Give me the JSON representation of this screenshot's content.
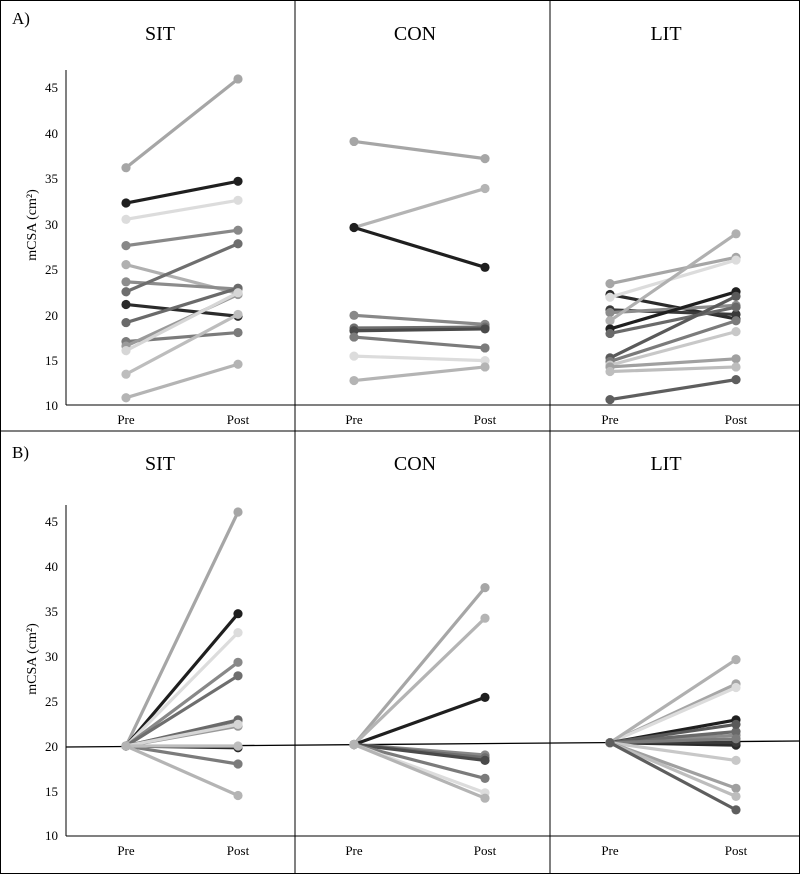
{
  "figure": {
    "panels": [
      {
        "label": "A)",
        "titles": [
          "SIT",
          "CON",
          "LIT"
        ]
      },
      {
        "label": "B)",
        "titles": [
          "SIT",
          "CON",
          "LIT"
        ]
      }
    ],
    "ylabel": "mCSA (cm²)",
    "xticks": [
      "Pre",
      "Post"
    ],
    "yticks": [
      "10",
      "15",
      "20",
      "25",
      "30",
      "35",
      "40",
      "45"
    ]
  },
  "chart_data": [
    {
      "type": "line",
      "panel": "A",
      "title": "SIT",
      "ylabel": "mCSA (cm²)",
      "categories": [
        "Pre",
        "Post"
      ],
      "ylim": [
        10,
        46
      ],
      "series": [
        {
          "name": "s1",
          "values": [
            36.2,
            46.0
          ],
          "color": "#a6a6a6"
        },
        {
          "name": "s2",
          "values": [
            32.3,
            34.7
          ],
          "color": "#1f1f1f"
        },
        {
          "name": "s3",
          "values": [
            30.5,
            32.6
          ],
          "color": "#dcdcdc"
        },
        {
          "name": "s4",
          "values": [
            27.6,
            29.3
          ],
          "color": "#888888"
        },
        {
          "name": "s5",
          "values": [
            25.5,
            22.3
          ],
          "color": "#b0b0b0"
        },
        {
          "name": "s6",
          "values": [
            23.6,
            22.8
          ],
          "color": "#8c8c8c"
        },
        {
          "name": "s7",
          "values": [
            22.5,
            27.8
          ],
          "color": "#6e6e6e"
        },
        {
          "name": "s8",
          "values": [
            21.1,
            19.8
          ],
          "color": "#2b2b2b"
        },
        {
          "name": "s9",
          "values": [
            19.1,
            22.9
          ],
          "color": "#6a6a6a"
        },
        {
          "name": "s10",
          "values": [
            17.0,
            18.0
          ],
          "color": "#7b7b7b"
        },
        {
          "name": "s11",
          "values": [
            16.5,
            22.2
          ],
          "color": "#9a9a9a"
        },
        {
          "name": "s12",
          "values": [
            16.0,
            22.4
          ],
          "color": "#d6d6d6"
        },
        {
          "name": "s13",
          "values": [
            13.4,
            20.0
          ],
          "color": "#bdbdbd"
        },
        {
          "name": "s14",
          "values": [
            10.8,
            14.5
          ],
          "color": "#b4b4b4"
        }
      ]
    },
    {
      "type": "line",
      "panel": "A",
      "title": "CON",
      "categories": [
        "Pre",
        "Post"
      ],
      "ylim": [
        10,
        46
      ],
      "series": [
        {
          "name": "c1",
          "values": [
            39.1,
            37.2
          ],
          "color": "#a6a6a6"
        },
        {
          "name": "c2",
          "values": [
            29.6,
            33.9
          ],
          "color": "#b4b4b4"
        },
        {
          "name": "c3",
          "values": [
            29.6,
            25.2
          ],
          "color": "#1f1f1f"
        },
        {
          "name": "c4",
          "values": [
            19.9,
            18.9
          ],
          "color": "#888888"
        },
        {
          "name": "c5",
          "values": [
            18.5,
            18.6
          ],
          "color": "#6e6e6e"
        },
        {
          "name": "c6",
          "values": [
            18.2,
            18.4
          ],
          "color": "#4a4a4a"
        },
        {
          "name": "c7",
          "values": [
            17.5,
            16.3
          ],
          "color": "#7b7b7b"
        },
        {
          "name": "c8",
          "values": [
            15.4,
            14.9
          ],
          "color": "#dcdcdc"
        },
        {
          "name": "c9",
          "values": [
            12.7,
            14.2
          ],
          "color": "#b4b4b4"
        }
      ]
    },
    {
      "type": "line",
      "panel": "A",
      "title": "LIT",
      "categories": [
        "Pre",
        "Post"
      ],
      "ylim": [
        10,
        46
      ],
      "series": [
        {
          "name": "l1",
          "values": [
            23.4,
            26.3
          ],
          "color": "#a6a6a6"
        },
        {
          "name": "l2",
          "values": [
            22.2,
            19.5
          ],
          "color": "#2b2b2b"
        },
        {
          "name": "l3",
          "values": [
            21.9,
            26.0
          ],
          "color": "#dcdcdc"
        },
        {
          "name": "l4",
          "values": [
            20.5,
            20.0
          ],
          "color": "#3a3a3a"
        },
        {
          "name": "l5",
          "values": [
            20.2,
            21.0
          ],
          "color": "#8c8c8c"
        },
        {
          "name": "l6",
          "values": [
            19.3,
            28.9
          ],
          "color": "#b0b0b0"
        },
        {
          "name": "l7",
          "values": [
            18.4,
            22.5
          ],
          "color": "#1f1f1f"
        },
        {
          "name": "l8",
          "values": [
            17.9,
            20.8
          ],
          "color": "#6a6a6a"
        },
        {
          "name": "l9",
          "values": [
            15.2,
            22.0
          ],
          "color": "#5a5a5a"
        },
        {
          "name": "l10",
          "values": [
            14.8,
            19.3
          ],
          "color": "#7b7b7b"
        },
        {
          "name": "l11",
          "values": [
            14.4,
            18.1
          ],
          "color": "#c8c8c8"
        },
        {
          "name": "l12",
          "values": [
            14.2,
            15.1
          ],
          "color": "#a0a0a0"
        },
        {
          "name": "l13",
          "values": [
            13.7,
            14.2
          ],
          "color": "#bdbdbd"
        },
        {
          "name": "l14",
          "values": [
            10.6,
            12.8
          ],
          "color": "#5e5e5e"
        }
      ]
    },
    {
      "type": "line",
      "panel": "B",
      "title": "SIT",
      "ylabel": "mCSA (cm²)",
      "categories": [
        "Pre",
        "Post"
      ],
      "ylim": [
        10,
        46
      ],
      "reference_line": 20,
      "series": [
        {
          "name": "s1",
          "values": [
            20,
            46.0
          ],
          "color": "#a6a6a6"
        },
        {
          "name": "s2",
          "values": [
            20,
            34.7
          ],
          "color": "#1f1f1f"
        },
        {
          "name": "s3",
          "values": [
            20,
            32.6
          ],
          "color": "#dcdcdc"
        },
        {
          "name": "s4",
          "values": [
            20,
            29.3
          ],
          "color": "#888888"
        },
        {
          "name": "s5",
          "values": [
            20,
            22.3
          ],
          "color": "#b0b0b0"
        },
        {
          "name": "s6",
          "values": [
            20,
            22.8
          ],
          "color": "#8c8c8c"
        },
        {
          "name": "s7",
          "values": [
            20,
            27.8
          ],
          "color": "#6e6e6e"
        },
        {
          "name": "s8",
          "values": [
            20,
            19.8
          ],
          "color": "#2b2b2b"
        },
        {
          "name": "s9",
          "values": [
            20,
            22.9
          ],
          "color": "#6a6a6a"
        },
        {
          "name": "s10",
          "values": [
            20,
            18.0
          ],
          "color": "#7b7b7b"
        },
        {
          "name": "s11",
          "values": [
            20,
            22.2
          ],
          "color": "#9a9a9a"
        },
        {
          "name": "s12",
          "values": [
            20,
            22.4
          ],
          "color": "#d6d6d6"
        },
        {
          "name": "s13",
          "values": [
            20,
            20.0
          ],
          "color": "#bdbdbd"
        },
        {
          "name": "s14",
          "values": [
            20,
            14.5
          ],
          "color": "#b4b4b4"
        }
      ]
    },
    {
      "type": "line",
      "panel": "B",
      "title": "CON",
      "categories": [
        "Pre",
        "Post"
      ],
      "ylim": [
        10,
        46
      ],
      "reference_line": 20,
      "series": [
        {
          "name": "c1",
          "values": [
            20,
            37.6
          ],
          "color": "#a6a6a6"
        },
        {
          "name": "c2",
          "values": [
            20,
            34.2
          ],
          "color": "#b4b4b4"
        },
        {
          "name": "c3",
          "values": [
            20,
            25.4
          ],
          "color": "#1f1f1f"
        },
        {
          "name": "c4",
          "values": [
            20,
            19.0
          ],
          "color": "#888888"
        },
        {
          "name": "c5",
          "values": [
            20,
            18.7
          ],
          "color": "#6e6e6e"
        },
        {
          "name": "c6",
          "values": [
            20,
            18.4
          ],
          "color": "#4a4a4a"
        },
        {
          "name": "c7",
          "values": [
            20,
            16.4
          ],
          "color": "#7b7b7b"
        },
        {
          "name": "c8",
          "values": [
            20,
            14.8
          ],
          "color": "#dcdcdc"
        },
        {
          "name": "c9",
          "values": [
            20,
            14.2
          ],
          "color": "#b4b4b4"
        }
      ]
    },
    {
      "type": "line",
      "panel": "B",
      "title": "LIT",
      "categories": [
        "Pre",
        "Post"
      ],
      "ylim": [
        10,
        46
      ],
      "reference_line": 20,
      "series": [
        {
          "name": "l1",
          "values": [
            20,
            26.9
          ],
          "color": "#a6a6a6"
        },
        {
          "name": "l2",
          "values": [
            20,
            20.1
          ],
          "color": "#2b2b2b"
        },
        {
          "name": "l3",
          "values": [
            20,
            26.5
          ],
          "color": "#dcdcdc"
        },
        {
          "name": "l4",
          "values": [
            20,
            20.4
          ],
          "color": "#3a3a3a"
        },
        {
          "name": "l5",
          "values": [
            20,
            21.2
          ],
          "color": "#8c8c8c"
        },
        {
          "name": "l6",
          "values": [
            20,
            29.6
          ],
          "color": "#b0b0b0"
        },
        {
          "name": "l7",
          "values": [
            20,
            22.9
          ],
          "color": "#1f1f1f"
        },
        {
          "name": "l8",
          "values": [
            20,
            21.6
          ],
          "color": "#6a6a6a"
        },
        {
          "name": "l9",
          "values": [
            20,
            22.4
          ],
          "color": "#5a5a5a"
        },
        {
          "name": "l10",
          "values": [
            20,
            20.8
          ],
          "color": "#7b7b7b"
        },
        {
          "name": "l11",
          "values": [
            20,
            18.4
          ],
          "color": "#c8c8c8"
        },
        {
          "name": "l12",
          "values": [
            20,
            15.3
          ],
          "color": "#a0a0a0"
        },
        {
          "name": "l13",
          "values": [
            20,
            14.4
          ],
          "color": "#bdbdbd"
        },
        {
          "name": "l14",
          "values": [
            20,
            12.9
          ],
          "color": "#5e5e5e"
        }
      ]
    }
  ]
}
